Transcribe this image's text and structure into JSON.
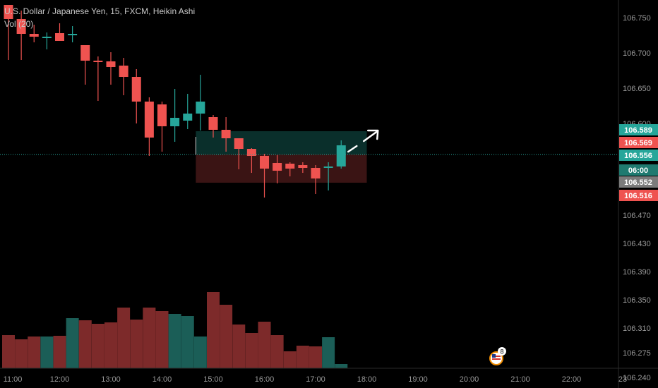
{
  "header": {
    "title": "U.S. Dollar / Japanese Yen, 15, FXCM, Heikin Ashi",
    "volume_label": "Vol (20)"
  },
  "price_axis": {
    "ticks": [
      "106.750",
      "106.700",
      "106.650",
      "106.600",
      "106.470",
      "106.430",
      "106.390",
      "106.350",
      "106.310",
      "106.275",
      "106.240"
    ]
  },
  "time_axis": {
    "ticks": [
      "11:00",
      "12:00",
      "13:00",
      "14:00",
      "15:00",
      "16:00",
      "17:00",
      "18:00",
      "19:00",
      "20:00",
      "21:00",
      "22:00",
      "23"
    ]
  },
  "price_badges": [
    {
      "label": "106.589",
      "color": "#26a69a"
    },
    {
      "label": "106.569",
      "color": "#ef5350"
    },
    {
      "label": "106.556",
      "color": "#26a69a"
    },
    {
      "label": "06:00",
      "color": "#1f7a70"
    },
    {
      "label": "106.552",
      "color": "#7b7b7b"
    },
    {
      "label": "106.516",
      "color": "#ef5350"
    }
  ],
  "event_marker": {
    "icon": "us-flag-icon",
    "count": "8"
  },
  "colors": {
    "up": "#26a69a",
    "down": "#ef5350",
    "volume_up": "#1b5e57",
    "volume_down": "#7d2a2a",
    "profit_zone": "#0a2f2b",
    "loss_zone": "#3a1414",
    "grid": "#141414",
    "axis_text": "#9a9a9a"
  },
  "chart_data": {
    "type": "candlestick",
    "title": "U.S. Dollar / Japanese Yen, 15, FXCM, Heikin Ashi",
    "x": [
      "11:00",
      "11:15",
      "11:30",
      "11:45",
      "12:00",
      "12:15",
      "12:30",
      "12:45",
      "13:00",
      "13:15",
      "13:30",
      "13:45",
      "14:00",
      "14:15",
      "14:30",
      "14:45",
      "15:00",
      "15:15",
      "15:30",
      "15:45",
      "16:00",
      "16:15",
      "16:30",
      "16:45",
      "17:00",
      "17:15"
    ],
    "open": [
      106.768,
      106.748,
      106.727,
      106.723,
      106.728,
      106.726,
      106.711,
      106.689,
      106.688,
      106.682,
      106.666,
      106.631,
      106.627,
      106.596,
      106.604,
      106.614,
      106.609,
      106.591,
      106.579,
      106.564,
      106.554,
      106.544,
      106.543,
      106.541,
      106.537,
      106.539
    ],
    "close": [
      106.748,
      106.727,
      106.723,
      106.723,
      106.717,
      106.727,
      106.689,
      106.688,
      106.68,
      106.666,
      106.631,
      106.58,
      106.596,
      106.608,
      106.614,
      106.631,
      106.591,
      106.579,
      106.564,
      106.554,
      106.536,
      106.533,
      106.536,
      106.537,
      106.522,
      106.539
    ],
    "high": [
      106.768,
      106.76,
      106.74,
      106.729,
      106.742,
      106.738,
      106.711,
      106.695,
      106.701,
      106.693,
      106.677,
      106.637,
      106.631,
      106.649,
      106.642,
      106.669,
      106.612,
      106.609,
      106.579,
      106.565,
      106.557,
      106.555,
      106.545,
      106.545,
      106.541,
      106.545
    ],
    "low": [
      106.69,
      106.69,
      106.715,
      106.705,
      106.72,
      106.715,
      106.655,
      106.632,
      106.655,
      106.64,
      106.6,
      106.554,
      106.56,
      106.574,
      106.592,
      106.59,
      106.58,
      106.56,
      106.535,
      106.53,
      106.495,
      106.515,
      106.525,
      106.53,
      106.5,
      106.505
    ],
    "volume": [
      106.3,
      106.294,
      106.298,
      106.298,
      106.299,
      106.324,
      106.321,
      106.316,
      106.318,
      106.339,
      106.322,
      106.339,
      106.334,
      106.33,
      106.327,
      106.298,
      106.361,
      106.343,
      106.315,
      106.303,
      106.319,
      106.3,
      106.277,
      106.285,
      106.284,
      106.297
    ],
    "volume_axis_scale": "shares price axis",
    "last": {
      "x": "17:30",
      "open": 106.539,
      "close": 106.569,
      "high": 106.576,
      "low": 106.536,
      "volume": 106.259
    },
    "position": {
      "entry": 106.556,
      "target": 106.589,
      "stop": 106.516,
      "start": "14:45",
      "end": "18:00"
    },
    "current_price": 106.556,
    "ylim": [
      106.225,
      106.775
    ],
    "grid": false
  }
}
